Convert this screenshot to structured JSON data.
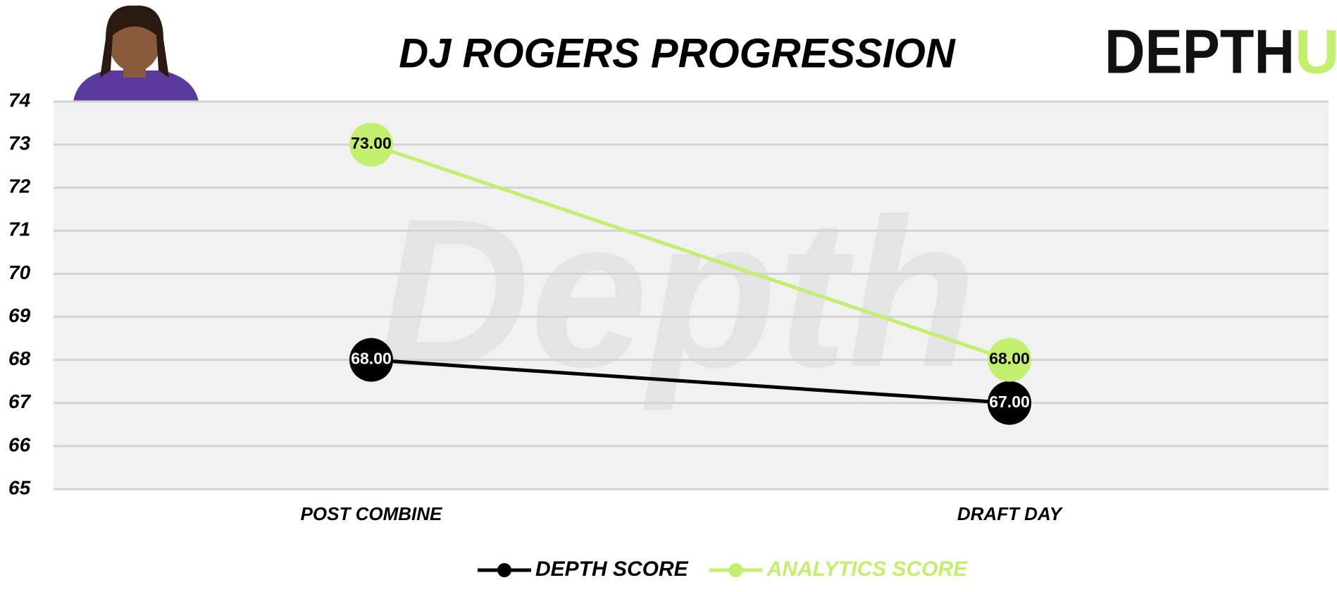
{
  "chart_data": {
    "type": "line",
    "title": "DJ ROGERS PROGRESSION",
    "logo": {
      "main": "DEPTH",
      "accent": "U"
    },
    "watermark": "Depth",
    "categories": [
      "POST COMBINE",
      "DRAFT DAY"
    ],
    "series": [
      {
        "name": "DEPTH SCORE",
        "color": "#000000",
        "values": [
          68,
          67
        ],
        "value_labels": [
          "68.00",
          "67.00"
        ]
      },
      {
        "name": "ANALYTICS SCORE",
        "color": "#c3ef6e",
        "values": [
          73,
          68
        ],
        "value_labels": [
          "73.00",
          "68.00"
        ]
      }
    ],
    "ylim": [
      65,
      74
    ],
    "yticks": [
      65,
      66,
      67,
      68,
      69,
      70,
      71,
      72,
      73,
      74
    ],
    "grid": true,
    "legend": "bottom"
  }
}
